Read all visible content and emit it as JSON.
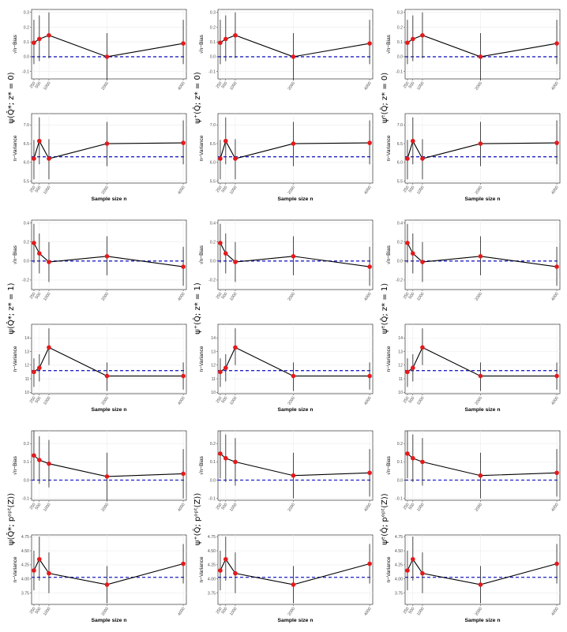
{
  "colors": {
    "line": "#000000",
    "point": "#e31a1c",
    "ref": "#2121c8",
    "grid": "#ebebeb",
    "panel_border": "#333333",
    "errorbar": "#333333"
  },
  "common": {
    "x_ticks": [
      "250",
      "500",
      "1000",
      "2000",
      "4000"
    ],
    "xlabel": "Sample size n",
    "bias_ylabel": "√n−Bias",
    "var_ylabel": "n−Variance"
  },
  "row_labels": [
    [
      "ψ(Q̂*; z* = 0)",
      "ψ⁺(Q̂; z* = 0)",
      "ψᵉ(Q̂; z* = 0)"
    ],
    [
      "ψ(Q̂*; z* = 1)",
      "ψ⁺(Q̂; z* = 1)",
      "ψᵉ(Q̂; z* = 1)"
    ],
    [
      "ψ(Q̂*; pᵒᵖᵗ(Z))",
      "ψ⁺(Q̂; pᵒᵖᵗ(Z))",
      "ψᵉ(Q̂; pᵒᵖᵗ(Z))"
    ]
  ],
  "chart_data": [
    {
      "type": "line",
      "row": 0,
      "col": 0,
      "metric": "bias",
      "x": [
        250,
        500,
        1000,
        2000,
        4000
      ],
      "values": [
        0.095,
        0.12,
        0.145,
        0.0,
        0.09
      ],
      "lower": [
        -0.05,
        -0.03,
        -0.01,
        -0.16,
        -0.05
      ],
      "upper": [
        0.25,
        0.28,
        0.3,
        0.16,
        0.25
      ],
      "reference": 0.0,
      "ylim": [
        -0.15,
        0.32
      ],
      "yticks": [
        "-0.1",
        "0.0",
        "0.1",
        "0.2",
        "0.3"
      ],
      "ylabel": "√n−Bias"
    },
    {
      "type": "line",
      "row": 0,
      "col": 1,
      "metric": "bias",
      "x": [
        250,
        500,
        1000,
        2000,
        4000
      ],
      "values": [
        0.095,
        0.12,
        0.145,
        0.0,
        0.09
      ],
      "lower": [
        -0.05,
        -0.03,
        -0.01,
        -0.16,
        -0.05
      ],
      "upper": [
        0.25,
        0.28,
        0.3,
        0.16,
        0.25
      ],
      "reference": 0.0,
      "ylim": [
        -0.15,
        0.32
      ],
      "yticks": [
        "-0.1",
        "0.0",
        "0.1",
        "0.2",
        "0.3"
      ],
      "ylabel": "√n−Bias"
    },
    {
      "type": "line",
      "row": 0,
      "col": 2,
      "metric": "bias",
      "x": [
        250,
        500,
        1000,
        2000,
        4000
      ],
      "values": [
        0.095,
        0.12,
        0.145,
        0.0,
        0.09
      ],
      "lower": [
        -0.05,
        -0.03,
        -0.01,
        -0.16,
        -0.05
      ],
      "upper": [
        0.25,
        0.28,
        0.3,
        0.16,
        0.25
      ],
      "reference": 0.0,
      "ylim": [
        -0.15,
        0.32
      ],
      "yticks": [
        "-0.1",
        "0.0",
        "0.1",
        "0.2",
        "0.3"
      ],
      "ylabel": "√n−Bias"
    },
    {
      "type": "line",
      "row": 0,
      "col": 0,
      "metric": "variance",
      "x": [
        250,
        500,
        1000,
        2000,
        4000
      ],
      "values": [
        6.1,
        6.57,
        6.1,
        6.5,
        6.52
      ],
      "lower": [
        5.55,
        5.95,
        5.55,
        5.9,
        5.95
      ],
      "upper": [
        6.6,
        7.2,
        6.62,
        7.08,
        7.12
      ],
      "reference": 6.15,
      "ylim": [
        5.45,
        7.3
      ],
      "yticks": [
        "5.5",
        "6.0",
        "6.5",
        "7.0"
      ],
      "ylabel": "n−Variance",
      "xlabel": "Sample size n"
    },
    {
      "type": "line",
      "row": 0,
      "col": 1,
      "metric": "variance",
      "x": [
        250,
        500,
        1000,
        2000,
        4000
      ],
      "values": [
        6.1,
        6.57,
        6.1,
        6.5,
        6.52
      ],
      "lower": [
        5.55,
        5.95,
        5.55,
        5.9,
        5.95
      ],
      "upper": [
        6.6,
        7.2,
        6.62,
        7.08,
        7.12
      ],
      "reference": 6.15,
      "ylim": [
        5.45,
        7.3
      ],
      "yticks": [
        "5.5",
        "6.0",
        "6.5",
        "7.0"
      ],
      "ylabel": "n−Variance",
      "xlabel": "Sample size n"
    },
    {
      "type": "line",
      "row": 0,
      "col": 2,
      "metric": "variance",
      "x": [
        250,
        500,
        1000,
        2000,
        4000
      ],
      "values": [
        6.1,
        6.57,
        6.1,
        6.5,
        6.52
      ],
      "lower": [
        5.55,
        5.95,
        5.55,
        5.9,
        5.95
      ],
      "upper": [
        6.6,
        7.2,
        6.62,
        7.08,
        7.12
      ],
      "reference": 6.15,
      "ylim": [
        5.45,
        7.3
      ],
      "yticks": [
        "5.5",
        "6.0",
        "6.5",
        "7.0"
      ],
      "ylabel": "n−Variance",
      "xlabel": "Sample size n"
    },
    {
      "type": "line",
      "row": 1,
      "col": 0,
      "metric": "bias",
      "x": [
        250,
        500,
        1000,
        2000,
        4000
      ],
      "values": [
        0.19,
        0.08,
        -0.01,
        0.05,
        -0.06
      ],
      "lower": [
        -0.02,
        -0.13,
        -0.22,
        -0.15,
        -0.26
      ],
      "upper": [
        0.39,
        0.29,
        0.2,
        0.26,
        0.15
      ],
      "reference": 0.0,
      "ylim": [
        -0.3,
        0.43
      ],
      "yticks": [
        "-0.2",
        "0.0",
        "0.2",
        "0.4"
      ],
      "ylabel": "√n−Bias"
    },
    {
      "type": "line",
      "row": 1,
      "col": 1,
      "metric": "bias",
      "x": [
        250,
        500,
        1000,
        2000,
        4000
      ],
      "values": [
        0.19,
        0.08,
        -0.01,
        0.05,
        -0.06
      ],
      "lower": [
        -0.02,
        -0.13,
        -0.22,
        -0.15,
        -0.26
      ],
      "upper": [
        0.39,
        0.29,
        0.2,
        0.26,
        0.15
      ],
      "reference": 0.0,
      "ylim": [
        -0.3,
        0.43
      ],
      "yticks": [
        "-0.2",
        "0.0",
        "0.2",
        "0.4"
      ],
      "ylabel": "√n−Bias"
    },
    {
      "type": "line",
      "row": 1,
      "col": 2,
      "metric": "bias",
      "x": [
        250,
        500,
        1000,
        2000,
        4000
      ],
      "values": [
        0.19,
        0.08,
        -0.01,
        0.05,
        -0.06
      ],
      "lower": [
        -0.02,
        -0.13,
        -0.22,
        -0.15,
        -0.26
      ],
      "upper": [
        0.39,
        0.29,
        0.2,
        0.26,
        0.15
      ],
      "reference": 0.0,
      "ylim": [
        -0.3,
        0.43
      ],
      "yticks": [
        "-0.2",
        "0.0",
        "0.2",
        "0.4"
      ],
      "ylabel": "√n−Bias"
    },
    {
      "type": "line",
      "row": 1,
      "col": 0,
      "metric": "variance",
      "x": [
        250,
        500,
        1000,
        2000,
        4000
      ],
      "values": [
        11.5,
        11.8,
        13.3,
        11.2,
        11.2
      ],
      "lower": [
        10.4,
        10.8,
        12.0,
        10.1,
        10.2
      ],
      "upper": [
        12.5,
        12.8,
        14.7,
        12.2,
        12.2
      ],
      "reference": 11.6,
      "ylim": [
        9.9,
        15.0
      ],
      "yticks": [
        "10",
        "11",
        "12",
        "13",
        "14"
      ],
      "ylabel": "n−Variance",
      "xlabel": "Sample size n"
    },
    {
      "type": "line",
      "row": 1,
      "col": 1,
      "metric": "variance",
      "x": [
        250,
        500,
        1000,
        2000,
        4000
      ],
      "values": [
        11.5,
        11.8,
        13.3,
        11.2,
        11.2
      ],
      "lower": [
        10.4,
        10.8,
        12.0,
        10.1,
        10.2
      ],
      "upper": [
        12.5,
        12.8,
        14.7,
        12.2,
        12.2
      ],
      "reference": 11.6,
      "ylim": [
        9.9,
        15.0
      ],
      "yticks": [
        "10",
        "11",
        "12",
        "13",
        "14"
      ],
      "ylabel": "n−Variance",
      "xlabel": "Sample size n"
    },
    {
      "type": "line",
      "row": 1,
      "col": 2,
      "metric": "variance",
      "x": [
        250,
        500,
        1000,
        2000,
        4000
      ],
      "values": [
        11.5,
        11.8,
        13.3,
        11.2,
        11.2
      ],
      "lower": [
        10.4,
        10.8,
        12.0,
        10.1,
        10.2
      ],
      "upper": [
        12.5,
        12.8,
        14.7,
        12.2,
        12.2
      ],
      "reference": 11.6,
      "ylim": [
        9.9,
        15.0
      ],
      "yticks": [
        "10",
        "11",
        "12",
        "13",
        "14"
      ],
      "ylabel": "n−Variance",
      "xlabel": "Sample size n"
    },
    {
      "type": "line",
      "row": 2,
      "col": 0,
      "metric": "bias",
      "x": [
        250,
        500,
        1000,
        2000,
        4000
      ],
      "values": [
        0.135,
        0.11,
        0.09,
        0.02,
        0.035
      ],
      "lower": [
        0.0,
        -0.02,
        -0.04,
        -0.11,
        -0.1
      ],
      "upper": [
        0.27,
        0.24,
        0.22,
        0.15,
        0.17
      ],
      "reference": 0.0,
      "ylim": [
        -0.11,
        0.27
      ],
      "yticks": [
        "-0.1",
        "0.0",
        "0.1",
        "0.2"
      ],
      "ylabel": "√n−Bias"
    },
    {
      "type": "line",
      "row": 2,
      "col": 1,
      "metric": "bias",
      "x": [
        250,
        500,
        1000,
        2000,
        4000
      ],
      "values": [
        0.145,
        0.12,
        0.1,
        0.025,
        0.04
      ],
      "lower": [
        0.01,
        -0.01,
        -0.03,
        -0.1,
        -0.09
      ],
      "upper": [
        0.27,
        0.25,
        0.23,
        0.15,
        0.17
      ],
      "reference": 0.0,
      "ylim": [
        -0.11,
        0.27
      ],
      "yticks": [
        "-0.1",
        "0.0",
        "0.1",
        "0.2"
      ],
      "ylabel": "√n−Bias"
    },
    {
      "type": "line",
      "row": 2,
      "col": 2,
      "metric": "bias",
      "x": [
        250,
        500,
        1000,
        2000,
        4000
      ],
      "values": [
        0.145,
        0.12,
        0.1,
        0.025,
        0.04
      ],
      "lower": [
        0.01,
        -0.01,
        -0.03,
        -0.1,
        -0.09
      ],
      "upper": [
        0.27,
        0.25,
        0.23,
        0.15,
        0.17
      ],
      "reference": 0.0,
      "ylim": [
        -0.11,
        0.27
      ],
      "yticks": [
        "-0.1",
        "0.0",
        "0.1",
        "0.2"
      ],
      "ylabel": "√n−Bias"
    },
    {
      "type": "line",
      "row": 2,
      "col": 0,
      "metric": "variance",
      "x": [
        250,
        500,
        1000,
        2000,
        4000
      ],
      "values": [
        4.15,
        4.35,
        4.1,
        3.9,
        4.27
      ],
      "lower": [
        3.8,
        3.97,
        3.75,
        3.57,
        3.92
      ],
      "upper": [
        4.5,
        4.75,
        4.47,
        4.23,
        4.62
      ],
      "reference": 4.03,
      "ylim": [
        3.55,
        4.78
      ],
      "yticks": [
        "3.75",
        "4.00",
        "4.25",
        "4.50",
        "4.75"
      ],
      "ylabel": "n−Variance",
      "xlabel": "Sample size n"
    },
    {
      "type": "line",
      "row": 2,
      "col": 1,
      "metric": "variance",
      "x": [
        250,
        500,
        1000,
        2000,
        4000
      ],
      "values": [
        4.15,
        4.35,
        4.1,
        3.9,
        4.27
      ],
      "lower": [
        3.8,
        3.97,
        3.75,
        3.57,
        3.92
      ],
      "upper": [
        4.5,
        4.75,
        4.47,
        4.23,
        4.62
      ],
      "reference": 4.03,
      "ylim": [
        3.55,
        4.78
      ],
      "yticks": [
        "3.75",
        "4.00",
        "4.25",
        "4.50",
        "4.75"
      ],
      "ylabel": "n−Variance",
      "xlabel": "Sample size n"
    },
    {
      "type": "line",
      "row": 2,
      "col": 2,
      "metric": "variance",
      "x": [
        250,
        500,
        1000,
        2000,
        4000
      ],
      "values": [
        4.15,
        4.35,
        4.1,
        3.9,
        4.27
      ],
      "lower": [
        3.8,
        3.97,
        3.75,
        3.57,
        3.92
      ],
      "upper": [
        4.5,
        4.75,
        4.47,
        4.23,
        4.62
      ],
      "reference": 4.03,
      "ylim": [
        3.55,
        4.78
      ],
      "yticks": [
        "3.75",
        "4.00",
        "4.25",
        "4.50",
        "4.75"
      ],
      "ylabel": "n−Variance",
      "xlabel": "Sample size n"
    }
  ]
}
